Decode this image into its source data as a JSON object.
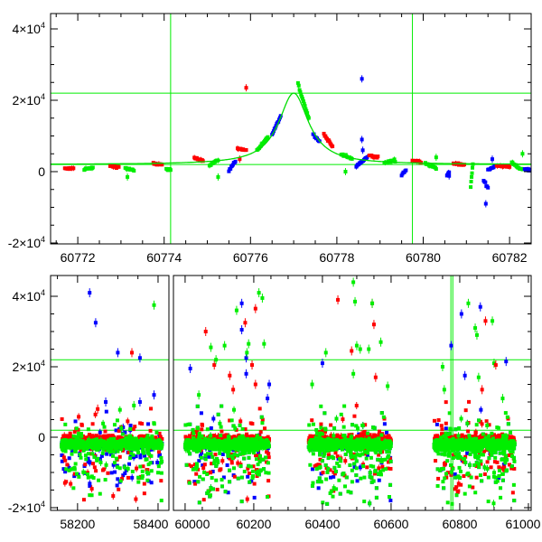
{
  "chart_data": [
    {
      "type": "scatter",
      "title": "",
      "xlabel": "",
      "ylabel": "",
      "xlim": [
        60771.37,
        60782.5
      ],
      "ylim": [
        -20000,
        44300
      ],
      "x_ticks": [
        60772,
        60774,
        60776,
        60778,
        60780,
        60782
      ],
      "x_tick_labels": [
        "60772",
        "60774",
        "60776",
        "60778",
        "60780",
        "60782"
      ],
      "y_ticks": [
        -20000,
        0,
        20000,
        40000
      ],
      "y_tick_labels": [
        {
          "m": "-2×10",
          "e": "4"
        },
        {
          "m": "0",
          "e": ""
        },
        {
          "m": "2×10",
          "e": "4"
        },
        {
          "m": "4×10",
          "e": "4"
        }
      ],
      "hlines": [
        22000,
        2000
      ],
      "vlines": [
        60774.15,
        60779.75
      ],
      "colors": {
        "r": "#ff0000",
        "g": "#00ee00",
        "b": "#0000ff",
        "model": "#00dd00"
      },
      "model": {
        "type": "lorentzian",
        "t0": 60777.0,
        "baseline": 2000,
        "amplitude": 20000,
        "width": 0.42
      },
      "clusters": [
        [
          60771.7,
          60771.9,
          800,
          900,
          "r"
        ],
        [
          60772.15,
          60772.35,
          700,
          1000,
          "g"
        ],
        [
          60772.75,
          60772.95,
          1600,
          1300,
          "r"
        ],
        [
          60773.1,
          60773.3,
          1000,
          300,
          "g"
        ],
        [
          60773.75,
          60773.95,
          2300,
          1900,
          "r"
        ],
        [
          60774.05,
          60774.15,
          600,
          400,
          "g"
        ],
        [
          60774.7,
          60774.9,
          3800,
          3100,
          "r"
        ],
        [
          60775.05,
          60775.25,
          1800,
          3200,
          "g"
        ],
        [
          60775.5,
          60775.65,
          300,
          3000,
          "b"
        ],
        [
          60775.7,
          60775.9,
          6500,
          6000,
          "r"
        ],
        [
          60776.15,
          60776.4,
          6000,
          9500,
          "g"
        ],
        [
          60776.5,
          60776.7,
          10500,
          15500,
          "b"
        ],
        [
          60777.1,
          60777.35,
          24500,
          15000,
          "g"
        ],
        [
          60777.45,
          60777.6,
          10500,
          8500,
          "b"
        ],
        [
          60777.7,
          60777.9,
          10500,
          7000,
          "r"
        ],
        [
          60778.1,
          60778.35,
          5000,
          3500,
          "g"
        ],
        [
          60778.45,
          60778.7,
          1500,
          4000,
          "b"
        ],
        [
          60778.75,
          60778.95,
          4500,
          4000,
          "r"
        ],
        [
          60779.1,
          60779.35,
          2500,
          3200,
          "g"
        ],
        [
          60779.5,
          60779.6,
          -1000,
          500,
          "b"
        ],
        [
          60779.75,
          60779.95,
          3000,
          2800,
          "r"
        ],
        [
          60780.05,
          60780.3,
          2500,
          800,
          "g"
        ],
        [
          60780.55,
          60780.6,
          -1000,
          -200,
          "b"
        ],
        [
          60780.7,
          60780.95,
          2300,
          1800,
          "r"
        ],
        [
          60781.1,
          60781.15,
          -4000,
          2000,
          "g"
        ],
        [
          60781.4,
          60781.5,
          -2500,
          -4500,
          "b"
        ],
        [
          60781.5,
          60781.65,
          500,
          1500,
          "b"
        ],
        [
          60781.7,
          60782.0,
          1800,
          1300,
          "r"
        ],
        [
          60782.05,
          60782.3,
          2500,
          400,
          "g"
        ],
        [
          60782.35,
          60782.5,
          800,
          300,
          "b"
        ]
      ],
      "points": [
        [
          60775.9,
          23500,
          "r"
        ],
        [
          60775.75,
          3500,
          "r"
        ],
        [
          60775.25,
          -1500,
          "g"
        ],
        [
          60773.15,
          -1500,
          "g"
        ],
        [
          60778.58,
          26000,
          "b"
        ],
        [
          60778.58,
          9000,
          "b"
        ],
        [
          60778.6,
          6000,
          "b"
        ],
        [
          60778.2,
          0,
          "g"
        ],
        [
          60781.45,
          -9000,
          "b"
        ],
        [
          60781.6,
          3500,
          "b"
        ],
        [
          60782.3,
          5000,
          "g"
        ],
        [
          60780.3,
          4000,
          "g"
        ],
        [
          60780.6,
          -1200,
          "b"
        ]
      ]
    },
    {
      "type": "scatter",
      "title": "",
      "xlabel": "",
      "ylabel": "",
      "broken_x_axis": true,
      "xlim_segments": [
        [
          58133,
          58427
        ],
        [
          59966,
          61008
        ]
      ],
      "ylim": [
        -20000,
        44000
      ],
      "x_ticks": [
        58200,
        58400,
        60000,
        60200,
        60400,
        60600,
        60800,
        61000
      ],
      "x_tick_labels": [
        "58200",
        "58400",
        "60000",
        "60200",
        "60400",
        "60600",
        "60800",
        "61000"
      ],
      "y_ticks": [
        -20000,
        0,
        20000,
        40000
      ],
      "y_tick_labels": [
        {
          "m": "-2×10",
          "e": "4"
        },
        {
          "m": "0",
          "e": ""
        },
        {
          "m": "2×10",
          "e": "4"
        },
        {
          "m": "4×10",
          "e": "4"
        }
      ],
      "hlines": [
        22000,
        2000
      ],
      "vlines": [
        60774.15,
        60779.75
      ],
      "colors": {
        "r": "#ff0000",
        "g": "#00ee00",
        "b": "#0000ff"
      },
      "dense_seasons": [
        [
          58160,
          58410,
          700
        ],
        [
          60000,
          60245,
          800
        ],
        [
          60360,
          60600,
          800
        ],
        [
          60725,
          60960,
          800
        ]
      ],
      "outliers": [
        [
          58230,
          41000,
          "b"
        ],
        [
          58245,
          32500,
          "b"
        ],
        [
          58300,
          24000,
          "b"
        ],
        [
          58335,
          24000,
          "r"
        ],
        [
          58355,
          22500,
          "b"
        ],
        [
          58390,
          37500,
          "g"
        ],
        [
          58270,
          10000,
          "b"
        ],
        [
          58355,
          10000,
          "b"
        ],
        [
          58390,
          12000,
          "b"
        ],
        [
          58340,
          9000,
          "g"
        ],
        [
          58250,
          8000,
          "r"
        ],
        [
          60015,
          19500,
          "b"
        ],
        [
          60040,
          12000,
          "g"
        ],
        [
          60060,
          30000,
          "r"
        ],
        [
          60075,
          25500,
          "g"
        ],
        [
          60085,
          20500,
          "r"
        ],
        [
          60090,
          22000,
          "g"
        ],
        [
          60115,
          26000,
          "g"
        ],
        [
          60130,
          17500,
          "r"
        ],
        [
          60140,
          13500,
          "r"
        ],
        [
          60150,
          36000,
          "g"
        ],
        [
          60165,
          38000,
          "b"
        ],
        [
          60165,
          30500,
          "b"
        ],
        [
          60175,
          32500,
          "r"
        ],
        [
          60178,
          22500,
          "b"
        ],
        [
          60178,
          18000,
          "b"
        ],
        [
          60180,
          24000,
          "g"
        ],
        [
          60185,
          26500,
          "g"
        ],
        [
          60195,
          20500,
          "r"
        ],
        [
          60205,
          36500,
          "r"
        ],
        [
          60205,
          15000,
          "r"
        ],
        [
          60215,
          41000,
          "g"
        ],
        [
          60225,
          39500,
          "g"
        ],
        [
          60230,
          26500,
          "g"
        ],
        [
          60240,
          11000,
          "b"
        ],
        [
          60245,
          15000,
          "b"
        ],
        [
          60370,
          15000,
          "g"
        ],
        [
          60400,
          21000,
          "b"
        ],
        [
          60410,
          24000,
          "g"
        ],
        [
          60445,
          39000,
          "r"
        ],
        [
          60485,
          24500,
          "r"
        ],
        [
          60490,
          44000,
          "g"
        ],
        [
          60495,
          38500,
          "g"
        ],
        [
          60500,
          26000,
          "g"
        ],
        [
          60510,
          25000,
          "g"
        ],
        [
          60490,
          18000,
          "g"
        ],
        [
          60535,
          25000,
          "g"
        ],
        [
          60545,
          38000,
          "r"
        ],
        [
          60545,
          38000,
          "g"
        ],
        [
          60550,
          32000,
          "r"
        ],
        [
          60555,
          17000,
          "r"
        ],
        [
          60570,
          27000,
          "g"
        ],
        [
          60590,
          14500,
          "g"
        ],
        [
          60750,
          20000,
          "g"
        ],
        [
          60755,
          13500,
          "g"
        ],
        [
          60775,
          26000,
          "b"
        ],
        [
          60805,
          35000,
          "b"
        ],
        [
          60815,
          17500,
          "b"
        ],
        [
          60825,
          38000,
          "g"
        ],
        [
          60845,
          31000,
          "g"
        ],
        [
          60850,
          29000,
          "g"
        ],
        [
          60855,
          17000,
          "g"
        ],
        [
          60860,
          37000,
          "b"
        ],
        [
          60865,
          13500,
          "r"
        ],
        [
          60875,
          33000,
          "r"
        ],
        [
          60895,
          33000,
          "g"
        ],
        [
          60900,
          21000,
          "g"
        ],
        [
          60905,
          20500,
          "r"
        ],
        [
          60935,
          21500,
          "b"
        ],
        [
          60925,
          11000,
          "g"
        ]
      ]
    }
  ]
}
